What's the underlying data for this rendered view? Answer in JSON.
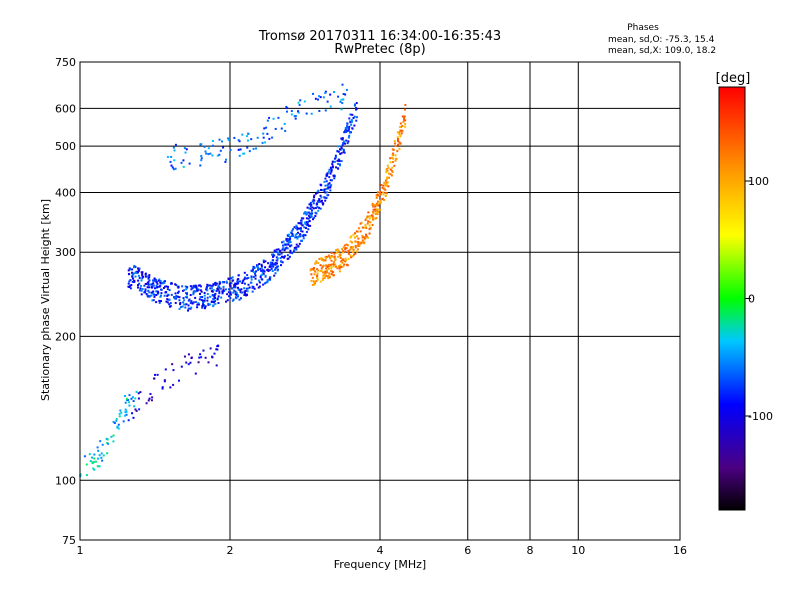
{
  "chart_data": {
    "type": "scatter",
    "title": "Tromsø 20170311 16:34:00-16:35:43",
    "subtitle": "RwPretec (8p)",
    "xlabel": "Frequency [MHz]",
    "ylabel": "Stationary phase Virtual Height [km]",
    "xscale": "log",
    "yscale": "log",
    "xlim": [
      1,
      16
    ],
    "ylim": [
      75,
      750
    ],
    "xticks": [
      1,
      2,
      4,
      6,
      8,
      10,
      16
    ],
    "yticks": [
      75,
      100,
      200,
      300,
      400,
      500,
      600,
      750
    ],
    "grid": true,
    "annotation": {
      "title": "Phases",
      "line1": "mean, sd,O: -75.3, 15.4",
      "line2": "mean, sd,X: 109.0, 18.2"
    },
    "colorbar": {
      "label": "[deg]",
      "range": [
        -180,
        180
      ],
      "ticks": [
        100,
        0,
        -100
      ]
    },
    "series": [
      {
        "name": "low-height trace 1.0-1.3 MHz",
        "x_range": [
          1.0,
          1.3
        ],
        "heights": [
          105,
          110,
          120,
          140,
          150
        ],
        "phase_deg": -40,
        "points": 70
      },
      {
        "name": "E/F1 trace 1.25-1.9 MHz",
        "x_range": [
          1.25,
          1.9
        ],
        "heights": [
          140,
          160,
          175,
          185
        ],
        "phase_deg": -110,
        "points": 55
      },
      {
        "name": "F trace O-mode 1.25-3.6 MHz",
        "x_range": [
          1.25,
          3.6
        ],
        "heights": [
          270,
          250,
          240,
          245,
          255,
          280,
          330,
          420,
          600
        ],
        "phase_deg": -80,
        "points": 900
      },
      {
        "name": "F trace X-mode 2.9-4.5 MHz",
        "x_range": [
          2.9,
          4.5
        ],
        "heights": [
          270,
          280,
          300,
          340,
          420,
          580
        ],
        "phase_deg": 115,
        "points": 380
      },
      {
        "name": "high-height trace 1.5-3.5 MHz",
        "x_range": [
          1.5,
          3.5
        ],
        "heights": [
          475,
          480,
          500,
          560,
          620,
          640
        ],
        "phase_deg": -60,
        "points": 120
      }
    ]
  }
}
